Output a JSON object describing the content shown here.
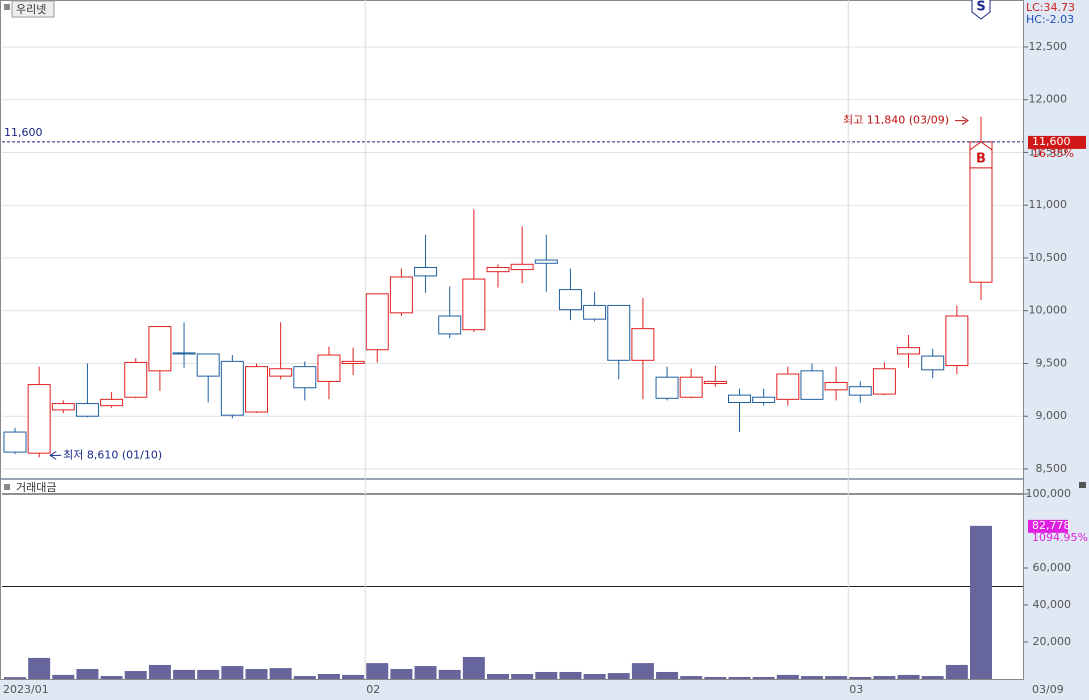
{
  "chart_data": [
    {
      "type": "candlestick",
      "title": "우리넷",
      "indicators": [
        "LC:34.73",
        "HC:-2.03"
      ],
      "open": [
        8850,
        8650,
        9060,
        9120,
        9100,
        9180,
        9430,
        9600,
        9590,
        9520,
        9040,
        9380,
        9470,
        9330,
        9500,
        9630,
        9980,
        10410,
        9950,
        9820,
        10370,
        10390,
        10480,
        10200,
        10050,
        10050,
        9530,
        9370,
        9180,
        9310,
        9200,
        9180,
        9160,
        9430,
        9250,
        9280,
        9210,
        9590,
        9570,
        9480,
        10270
      ],
      "high": [
        8890,
        9470,
        9150,
        9500,
        9230,
        9550,
        9850,
        9890,
        9590,
        9580,
        9500,
        9890,
        9520,
        9660,
        9650,
        10160,
        10400,
        10720,
        10230,
        10960,
        10440,
        10800,
        10720,
        10400,
        10180,
        10050,
        10120,
        9470,
        9450,
        9480,
        9260,
        9260,
        9470,
        9500,
        9470,
        9330,
        9510,
        9770,
        9640,
        10050,
        11840
      ],
      "low": [
        8640,
        8610,
        9030,
        8990,
        9080,
        9170,
        9240,
        9460,
        9130,
        8980,
        9030,
        9350,
        9150,
        9160,
        9390,
        9510,
        9950,
        10170,
        9740,
        9800,
        10220,
        10260,
        10180,
        9910,
        9900,
        9350,
        9160,
        9150,
        9170,
        9280,
        8850,
        9100,
        9100,
        9160,
        9150,
        9130,
        9200,
        9460,
        9360,
        9400,
        10100
      ],
      "close": [
        8660,
        9300,
        9120,
        9000,
        9160,
        9510,
        9850,
        9590,
        9380,
        9010,
        9470,
        9450,
        9270,
        9580,
        9520,
        10160,
        10320,
        10330,
        9780,
        10300,
        10410,
        10440,
        10450,
        10010,
        9920,
        9530,
        9830,
        9170,
        9370,
        9330,
        9130,
        9130,
        9400,
        9160,
        9320,
        9200,
        9450,
        9650,
        9440,
        9950,
        11600
      ],
      "up_color": "#e02020",
      "down_color": "#1f5fa0",
      "ylim": [
        8424,
        12945
      ],
      "yticks": [
        {
          "value": 8500,
          "label": "8,500"
        },
        {
          "value": 9000,
          "label": "9,000"
        },
        {
          "value": 9500,
          "label": "9,500"
        },
        {
          "value": 10000,
          "label": "10,000"
        },
        {
          "value": 10500,
          "label": "10,500"
        },
        {
          "value": 11000,
          "label": "11,000"
        },
        {
          "value": 11500,
          "label": "11,500"
        },
        {
          "value": 12000,
          "label": "12,000"
        },
        {
          "value": 12500,
          "label": "12,500"
        }
      ],
      "grid": true,
      "last_price": {
        "value": 11600,
        "label": "11,600"
      },
      "change": {
        "value": 16.35,
        "label": "16.35%"
      },
      "high_annotation": "최고 11,840 (03/09)",
      "low_annotation": "최저 8,610 (01/10)",
      "buy_signal": "B",
      "sell_signal": "S"
    },
    {
      "type": "bar",
      "title": "거래대금",
      "categories": [
        "2023/01",
        null,
        null,
        null,
        null,
        null,
        null,
        null,
        null,
        null,
        null,
        null,
        null,
        null,
        null,
        "02",
        null,
        null,
        null,
        null,
        null,
        null,
        null,
        null,
        null,
        null,
        null,
        null,
        null,
        null,
        null,
        null,
        null,
        null,
        null,
        "03",
        null,
        null,
        null,
        null,
        "03/09"
      ],
      "values": [
        1000,
        11400,
        2200,
        5400,
        1600,
        4300,
        7600,
        4900,
        4900,
        7000,
        5400,
        5900,
        1600,
        2700,
        2200,
        8600,
        5400,
        7000,
        4900,
        11900,
        2700,
        2700,
        3800,
        3800,
        2700,
        3200,
        8600,
        3800,
        1600,
        1100,
        1100,
        1100,
        2200,
        1600,
        1600,
        1100,
        1600,
        2200,
        1600,
        7600,
        82778
      ],
      "color": "#66669c",
      "ylim": [
        0,
        107560
      ],
      "yticks": [
        {
          "value": 20000,
          "label": "20,000"
        },
        {
          "value": 40000,
          "label": "40,000"
        },
        {
          "value": 60000,
          "label": "60,000"
        },
        {
          "value": 100000,
          "label": "100,000"
        }
      ],
      "hlines": [
        100000,
        50000
      ],
      "last_value": {
        "value": 82778,
        "label": "82,778"
      },
      "change": {
        "value": 1094.95,
        "label": "1094.95%"
      }
    }
  ]
}
